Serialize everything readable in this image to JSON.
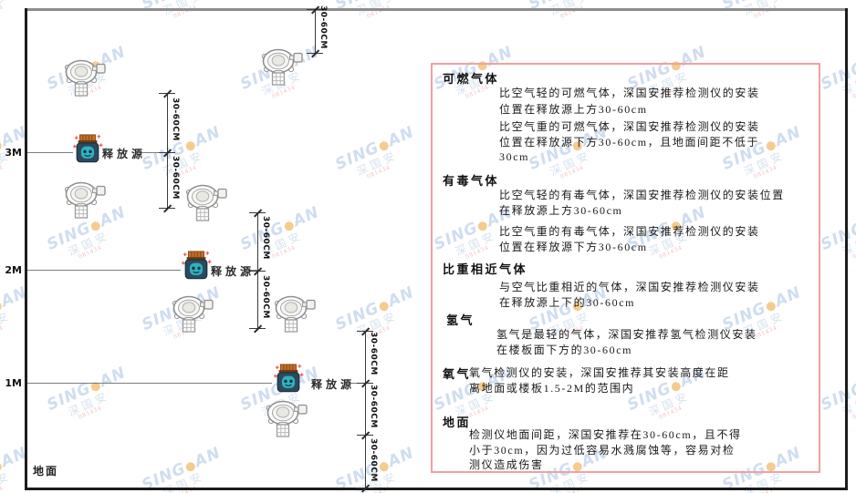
{
  "diagram": {
    "axis": {
      "m3": "3M",
      "m2": "2M",
      "m1": "1M",
      "ground": "地面"
    },
    "release_source_label": "释放源",
    "dimension_label": "30-60CM"
  },
  "watermark": {
    "brand_left": "SING",
    "brand_dot": "●",
    "brand_right": "AN",
    "cn": "深国安",
    "code": "081434"
  },
  "panel": {
    "sections": [
      {
        "title": "可燃气体",
        "paragraphs": [
          [
            "比空气轻的可燃气体，深国安推荐检测仪的安装",
            "位置在释放源上方30-60cm"
          ],
          [
            "比空气重的可燃气体，深国安推荐检测仪的安装",
            "位置在释放源下方30-60cm，且地面间距不低于",
            "30cm"
          ]
        ]
      },
      {
        "title": "有毒气体",
        "paragraphs": [
          [
            "比空气轻的有毒气体，深国安推荐检测仪的安装位置",
            "在释放源上方30-60cm"
          ],
          [
            "比空气重的有毒气体，深国安推荐检测仪的安装",
            "位置在释放源下方30-60cm"
          ]
        ]
      },
      {
        "title": "比重相近气体",
        "paragraphs": [
          [
            "与空气比重相近的气体，深国安推荐检测仪安装",
            "在释放源上下的30-60cm"
          ]
        ]
      },
      {
        "title": "氢气",
        "paragraphs": [
          [
            "氢气是最轻的气体，深国安推荐氢气检测仪安装",
            "在楼板面下方的30-60cm"
          ]
        ]
      },
      {
        "title": "氧气",
        "paragraphs": [
          [
            "氧气检测仪的安装，深国安推荐其安装高度在距",
            "离地面或楼板1.5-2M的范围内"
          ]
        ]
      },
      {
        "title": "地面",
        "paragraphs": [
          [
            "检测仪地面间距，深国安推荐在30-60cm，且不得",
            "小于30cm，因为过低容易水溅腐蚀等，容易对检",
            "测仪造成伤害"
          ]
        ]
      }
    ]
  }
}
